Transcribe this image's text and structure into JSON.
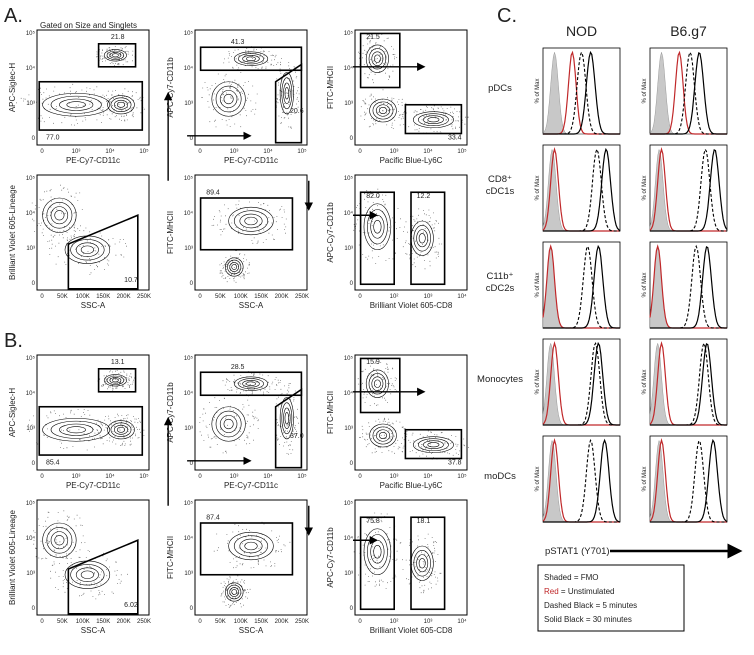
{
  "panels": [
    {
      "label": "A.",
      "subtitle": "Gated on Size and Singlets",
      "plots": [
        {
          "y_label": "APC-Siglec-H",
          "x_label": "PE-Cy7-CD11c",
          "xticks": [
            "0",
            "10³",
            "10⁴",
            "10⁵"
          ],
          "yticks": [
            "0",
            "10³",
            "10⁴",
            "10⁵"
          ],
          "gates": [
            "21.8",
            "77.0"
          ]
        },
        {
          "y_label": "APC-Cy7-CD11b",
          "x_label": "PE-Cy7-CD11c",
          "xticks": [
            "0",
            "10³",
            "10⁴",
            "10⁵"
          ],
          "yticks": [
            "0",
            "10³",
            "10⁴",
            "10⁵"
          ],
          "gates": [
            "41.3",
            "20.6"
          ]
        },
        {
          "y_label": "FITC-MHCII",
          "x_label": "Pacific Blue-Ly6C",
          "xticks": [
            "0",
            "10³",
            "10⁴",
            "10⁵"
          ],
          "yticks": [
            "0",
            "10³",
            "10⁴",
            "10⁵"
          ],
          "gates": [
            "21.5",
            "33.4"
          ]
        },
        {
          "y_label": "Brilliant Violet 605-Lineage",
          "x_label": "SSC-A",
          "xticks": [
            "0",
            "50K",
            "100K",
            "150K",
            "200K",
            "250K"
          ],
          "yticks": [
            "0",
            "10³",
            "10⁴",
            "10⁵"
          ],
          "gates": [
            "10.7"
          ]
        },
        {
          "y_label": "FITC-MHCII",
          "x_label": "SSC-A",
          "xticks": [
            "0",
            "50K",
            "100K",
            "150K",
            "200K",
            "250K"
          ],
          "yticks": [
            "0",
            "10³",
            "10⁴",
            "10⁵"
          ],
          "gates": [
            "89.4"
          ]
        },
        {
          "y_label": "APC-Cy7-CD11b",
          "x_label": "Brilliant Violet 605-CD8",
          "xticks": [
            "0",
            "10²",
            "10³",
            "10⁴"
          ],
          "yticks": [
            "0",
            "10³",
            "10⁴",
            "10⁵"
          ],
          "gates": [
            "82.0",
            "12.2"
          ]
        }
      ]
    },
    {
      "label": "B.",
      "plots": [
        {
          "y_label": "APC-Siglec-H",
          "x_label": "PE-Cy7-CD11c",
          "xticks": [
            "0",
            "10³",
            "10⁴",
            "10⁵"
          ],
          "yticks": [
            "0",
            "10³",
            "10⁴",
            "10⁵"
          ],
          "gates": [
            "13.1",
            "85.4"
          ]
        },
        {
          "y_label": "APC-Cy7-CD11b",
          "x_label": "PE-Cy7-CD11c",
          "xticks": [
            "0",
            "10³",
            "10⁴",
            "10⁵"
          ],
          "yticks": [
            "0",
            "10³",
            "10⁴",
            "10⁵"
          ],
          "gates": [
            "28.5",
            "37.0"
          ]
        },
        {
          "y_label": "FITC-MHCII",
          "x_label": "Pacific Blue-Ly6C",
          "xticks": [
            "0",
            "10³",
            "10⁴",
            "10⁵"
          ],
          "yticks": [
            "0",
            "10³",
            "10⁴",
            "10⁵"
          ],
          "gates": [
            "15.9",
            "37.8"
          ]
        },
        {
          "y_label": "Brilliant Violet 605-Lineage",
          "x_label": "SSC-A",
          "xticks": [
            "0",
            "50K",
            "100K",
            "150K",
            "200K",
            "250K"
          ],
          "yticks": [
            "0",
            "10³",
            "10⁴",
            "10⁵"
          ],
          "gates": [
            "6.02"
          ]
        },
        {
          "y_label": "FITC-MHCII",
          "x_label": "SSC-A",
          "xticks": [
            "0",
            "50K",
            "100K",
            "150K",
            "200K",
            "250K"
          ],
          "yticks": [
            "0",
            "10³",
            "10⁴",
            "10⁵"
          ],
          "gates": [
            "87.4"
          ]
        },
        {
          "y_label": "APC-Cy7-CD11b",
          "x_label": "Brilliant Violet 605-CD8",
          "xticks": [
            "0",
            "10²",
            "10³",
            "10⁴"
          ],
          "yticks": [
            "0",
            "10³",
            "10⁴",
            "10⁵"
          ],
          "gates": [
            "75.8",
            "18.1"
          ]
        }
      ]
    }
  ],
  "panel_c": {
    "label": "C.",
    "columns": [
      "NOD",
      "B6.g7"
    ],
    "rows": [
      [
        "pDCs"
      ],
      [
        "CD8⁺",
        "cDC1s"
      ],
      [
        "C11b⁺",
        "cDC2s"
      ],
      [
        "Monocytes"
      ],
      [
        "moDCs"
      ]
    ],
    "y_label": "% of Max",
    "x_label": "pSTAT1 (Y701)",
    "legend": [
      {
        "key": "Shaded",
        "text": "= FMO"
      },
      {
        "key": "Red",
        "text": "= Unstimulated"
      },
      {
        "key": "Dashed Black",
        "text": "= 5 minutes"
      },
      {
        "key": "Solid Black",
        "text": "= 30 minutes"
      }
    ]
  }
}
